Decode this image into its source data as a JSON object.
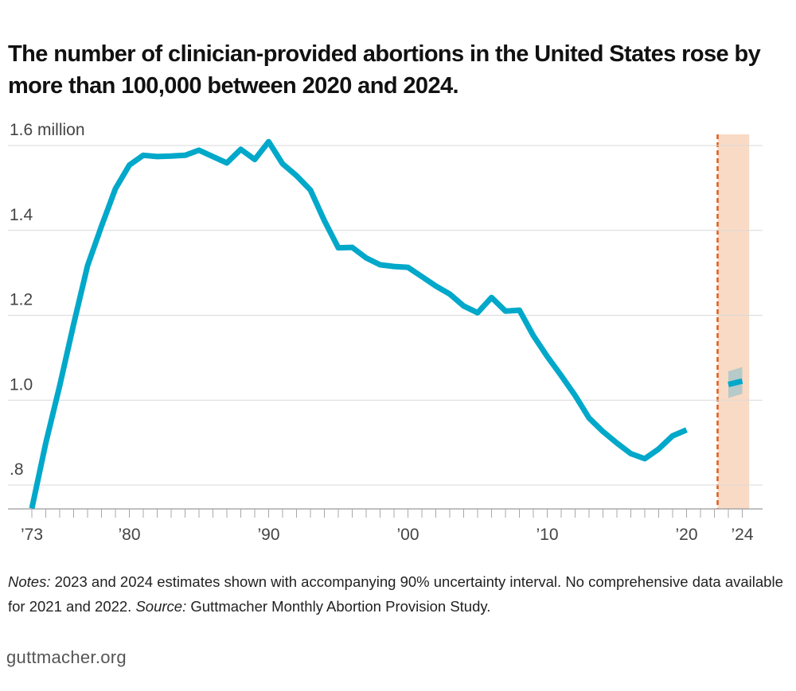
{
  "title": "The number of clinician-provided abortions in the United States rose by more than 100,000 between 2020 and 2024.",
  "notes": {
    "notes_label": "Notes:",
    "notes_text": " 2023 and 2024 estimates shown with accompanying 90% uncertainty interval. No comprehensive data available for 2021 and 2022. ",
    "source_label": "Source:",
    "source_text": " Guttmacher Monthly Abortion Provision Study."
  },
  "brand": "guttmacher.org",
  "chart_data": {
    "type": "line",
    "title": "The number of clinician-provided abortions in the United States rose by more than 100,000 between 2020 and 2024.",
    "ylabel": "",
    "xlabel": "",
    "unit": "million",
    "ylim": [
      0.75,
      1.63
    ],
    "xlim": [
      1973,
      2024.5
    ],
    "grid": true,
    "y_ticks": [
      {
        "value": 1.6,
        "label": "1.6 million"
      },
      {
        "value": 1.4,
        "label": "1.4"
      },
      {
        "value": 1.2,
        "label": "1.2"
      },
      {
        "value": 1.0,
        "label": "1.0"
      },
      {
        "value": 0.8,
        "label": ".8"
      }
    ],
    "x_ticks": [
      {
        "value": 1973,
        "label": "'73"
      },
      {
        "value": 1980,
        "label": "'80"
      },
      {
        "value": 1990,
        "label": "'90"
      },
      {
        "value": 2000,
        "label": "'00"
      },
      {
        "value": 2010,
        "label": "'10"
      },
      {
        "value": 2020,
        "label": "'20"
      },
      {
        "value": 2024,
        "label": "'24"
      }
    ],
    "series": [
      {
        "color": "#00a8c9",
        "x": [
          1973,
          1974,
          1975,
          1976,
          1977,
          1978,
          1979,
          1980,
          1981,
          1982,
          1983,
          1984,
          1985,
          1986,
          1987,
          1988,
          1989,
          1990,
          1991,
          1992,
          1993,
          1994,
          1995,
          1996,
          1997,
          1998,
          1999,
          2000,
          2001,
          2002,
          2003,
          2004,
          2005,
          2006,
          2007,
          2008,
          2009,
          2010,
          2011,
          2012,
          2013,
          2014,
          2015,
          2016,
          2017,
          2018,
          2019,
          2020
        ],
        "values": [
          0.745,
          0.899,
          1.034,
          1.179,
          1.317,
          1.41,
          1.498,
          1.554,
          1.577,
          1.574,
          1.575,
          1.577,
          1.589,
          1.574,
          1.559,
          1.591,
          1.567,
          1.609,
          1.557,
          1.529,
          1.495,
          1.423,
          1.359,
          1.36,
          1.335,
          1.319,
          1.315,
          1.313,
          1.291,
          1.269,
          1.25,
          1.222,
          1.206,
          1.242,
          1.21,
          1.212,
          1.152,
          1.103,
          1.058,
          1.011,
          0.958,
          0.926,
          0.899,
          0.874,
          0.862,
          0.885,
          0.916,
          0.93
        ]
      },
      {
        "color": "#00a8c9",
        "x": [
          2023,
          2024
        ],
        "values": [
          1.037,
          1.045
        ],
        "ci_low": [
          1.005,
          1.015
        ],
        "ci_high": [
          1.068,
          1.078
        ]
      }
    ],
    "no_data_period": {
      "from": 2021,
      "to": 2022
    },
    "estimate_band": {
      "from": 2022,
      "to": 2024.5,
      "color": "#f9dac5"
    },
    "divider_color": "#e05a1a"
  }
}
